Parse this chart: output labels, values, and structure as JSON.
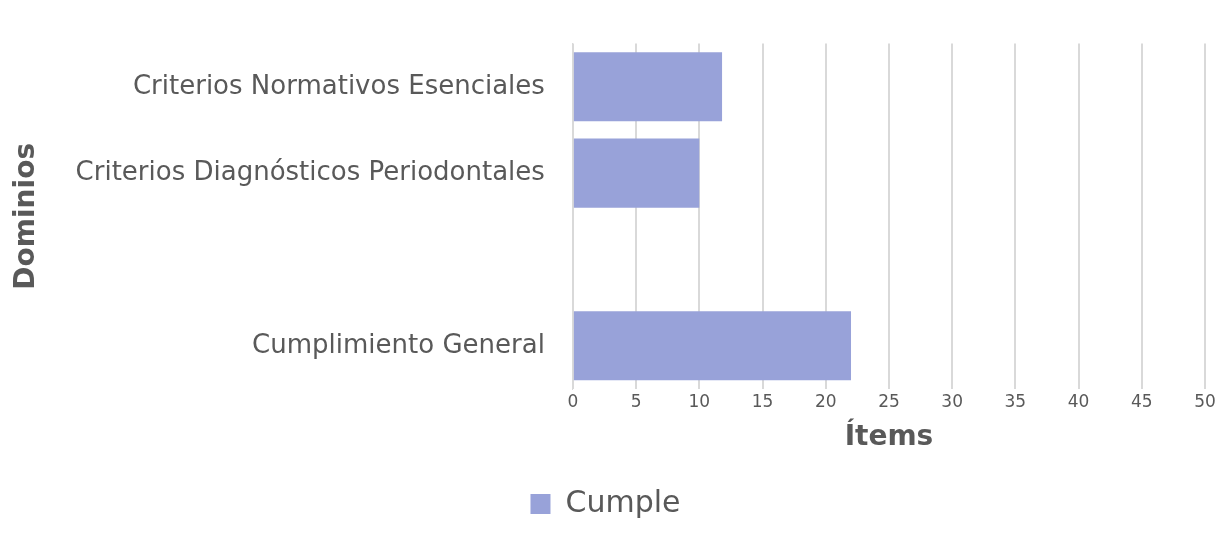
{
  "chart_data": {
    "type": "bar",
    "orientation": "horizontal",
    "xlabel": "Ítems",
    "ylabel": "Dominios",
    "categories": [
      "Criterios Normativos Esenciales",
      "Criterios Diagnósticos Periodontales",
      null,
      "Cumplimiento General"
    ],
    "series": [
      {
        "name": "Cumple",
        "color": "#98a2d9",
        "values": [
          11.8,
          10,
          null,
          22
        ]
      }
    ],
    "xlim": [
      0,
      50
    ],
    "xticks": [
      0,
      5,
      10,
      15,
      20,
      25,
      30,
      35,
      40,
      45,
      50
    ],
    "grid": "x",
    "legend": "bottom"
  }
}
